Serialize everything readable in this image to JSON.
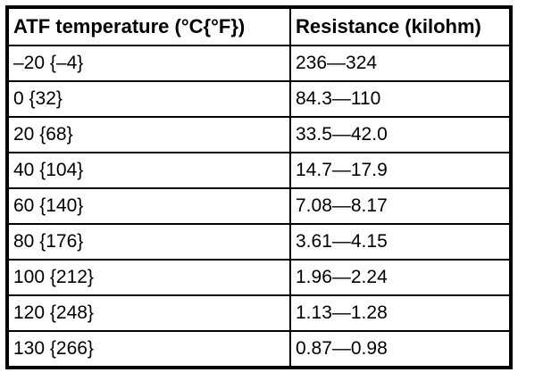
{
  "table": {
    "columns": [
      "ATF temperature (°C{°F})",
      "Resistance (kilohm)"
    ],
    "rows": [
      [
        "–20 {–4}",
        "236—324"
      ],
      [
        "0 {32}",
        "84.3—110"
      ],
      [
        "20 {68}",
        "33.5—42.0"
      ],
      [
        "40 {104}",
        "14.7—17.9"
      ],
      [
        "60 {140}",
        "7.08—8.17"
      ],
      [
        "80 {176}",
        "3.61—4.15"
      ],
      [
        "100 {212}",
        "1.96—2.24"
      ],
      [
        "120 {248}",
        "1.13—1.28"
      ],
      [
        "130 {266}",
        "0.87—0.98"
      ]
    ],
    "colors": {
      "border": "#000000",
      "text": "#000000",
      "background": "#ffffff"
    }
  }
}
